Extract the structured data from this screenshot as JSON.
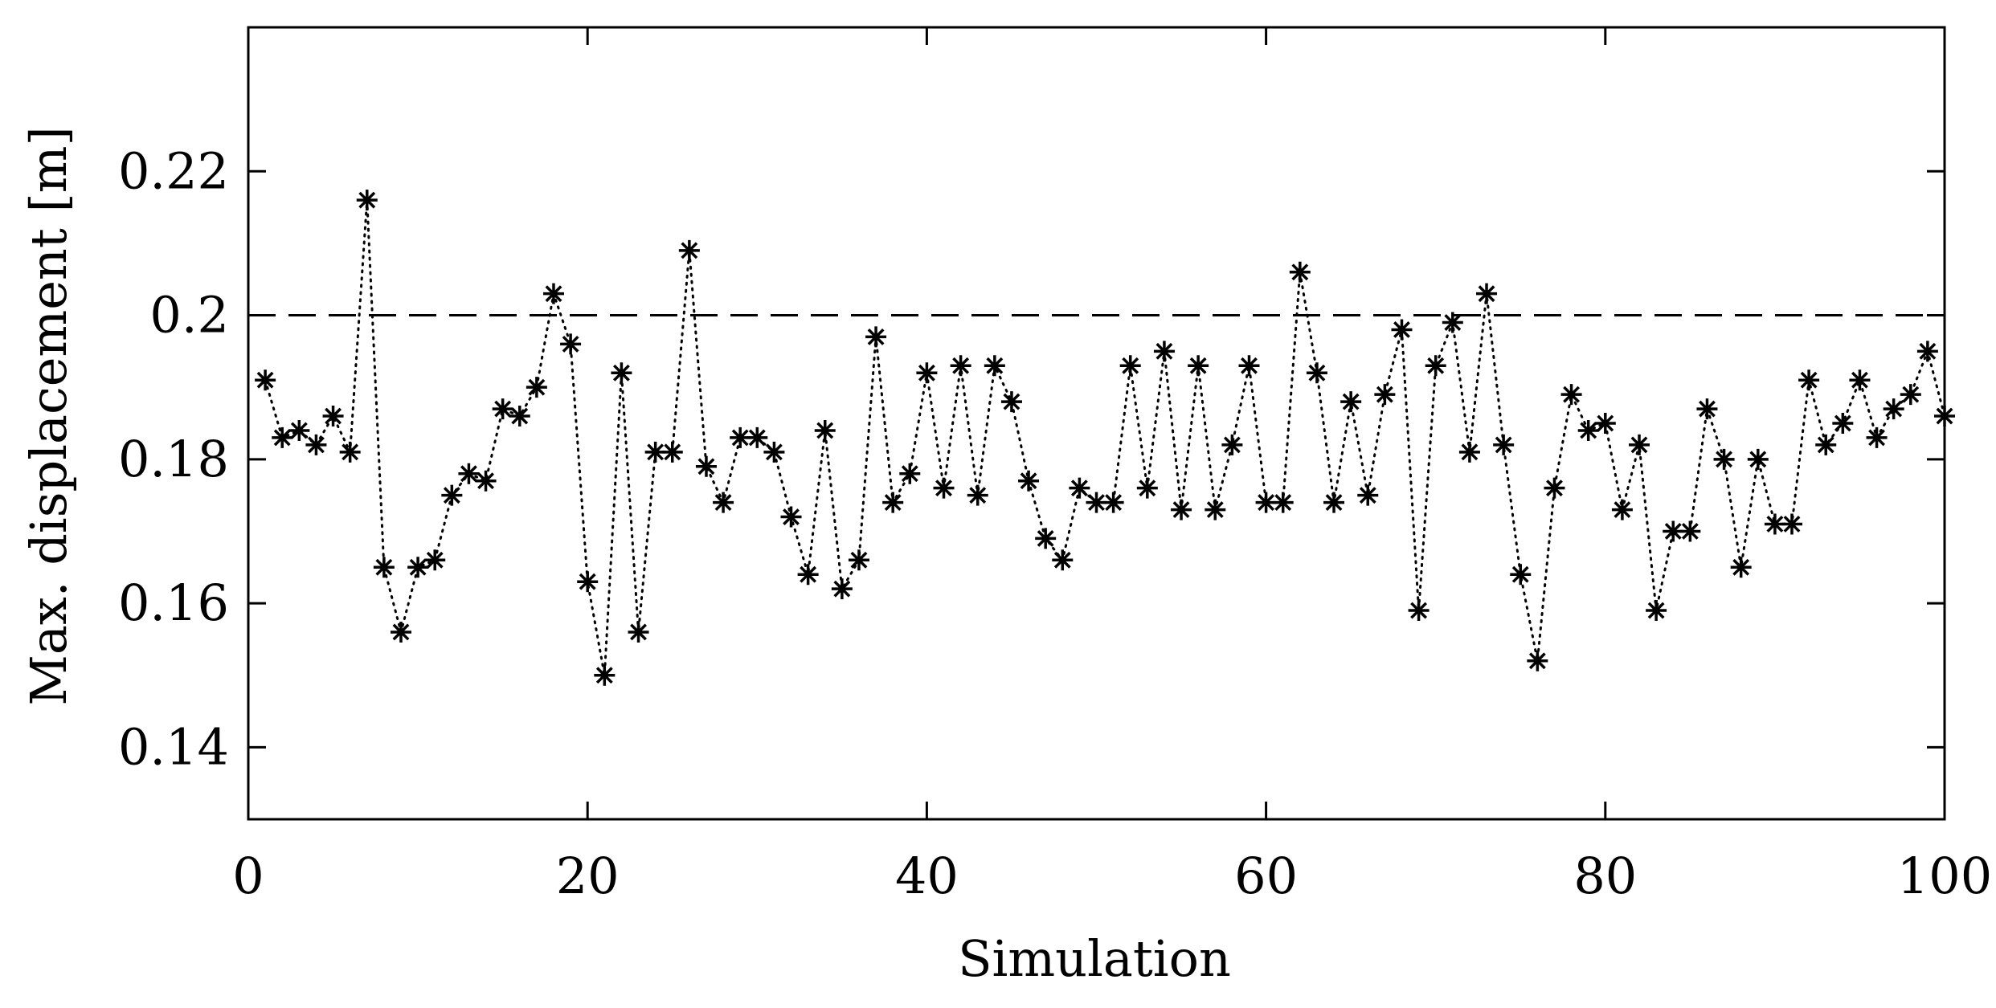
{
  "chart_data": {
    "type": "scatter",
    "xlabel": "Simulation",
    "ylabel": "Max. displacement [m]",
    "xlim": [
      0,
      100
    ],
    "ylim": [
      0.13,
      0.24
    ],
    "xticks": [
      0,
      20,
      40,
      60,
      80,
      100
    ],
    "xtick_labels": [
      "0",
      "20",
      "40",
      "60",
      "80",
      "100"
    ],
    "yticks": [
      0.14,
      0.16,
      0.18,
      0.2,
      0.22
    ],
    "ytick_labels": [
      "0.14",
      "0.16",
      "0.18",
      "0.2",
      "0.22"
    ],
    "grid": false,
    "marker": "asterisk",
    "line_style": "dotted",
    "reference_line": {
      "y": 0.2,
      "style": "dashed"
    },
    "series": [
      {
        "x": [
          1,
          2,
          3,
          4,
          5,
          6,
          7,
          8,
          9,
          10,
          11,
          12,
          13,
          14,
          15,
          16,
          17,
          18,
          19,
          20,
          21,
          22,
          23,
          24,
          25,
          26,
          27,
          28,
          29,
          30,
          31,
          32,
          33,
          34,
          35,
          36,
          37,
          38,
          39,
          40,
          41,
          42,
          43,
          44,
          45,
          46,
          47,
          48,
          49,
          50,
          51,
          52,
          53,
          54,
          55,
          56,
          57,
          58,
          59,
          60,
          61,
          62,
          63,
          64,
          65,
          66,
          67,
          68,
          69,
          70,
          71,
          72,
          73,
          74,
          75,
          76,
          77,
          78,
          79,
          80,
          81,
          82,
          83,
          84,
          85,
          86,
          87,
          88,
          89,
          90,
          91,
          92,
          93,
          94,
          95,
          96,
          97,
          98,
          99,
          100
        ],
        "y": [
          0.191,
          0.183,
          0.184,
          0.182,
          0.186,
          0.181,
          0.216,
          0.165,
          0.156,
          0.165,
          0.166,
          0.175,
          0.178,
          0.177,
          0.187,
          0.186,
          0.19,
          0.203,
          0.196,
          0.163,
          0.15,
          0.192,
          0.156,
          0.181,
          0.181,
          0.209,
          0.179,
          0.174,
          0.183,
          0.183,
          0.181,
          0.172,
          0.164,
          0.184,
          0.162,
          0.166,
          0.197,
          0.174,
          0.178,
          0.192,
          0.176,
          0.193,
          0.175,
          0.193,
          0.188,
          0.177,
          0.169,
          0.166,
          0.176,
          0.174,
          0.174,
          0.193,
          0.176,
          0.195,
          0.173,
          0.193,
          0.173,
          0.182,
          0.193,
          0.174,
          0.174,
          0.206,
          0.192,
          0.174,
          0.188,
          0.175,
          0.189,
          0.198,
          0.159,
          0.193,
          0.199,
          0.181,
          0.203,
          0.182,
          0.164,
          0.152,
          0.176,
          0.189,
          0.184,
          0.185,
          0.173,
          0.182,
          0.159,
          0.17,
          0.17,
          0.187,
          0.18,
          0.165,
          0.18,
          0.171,
          0.171,
          0.191,
          0.182,
          0.185,
          0.191,
          0.183,
          0.187,
          0.189,
          0.195,
          0.186
        ]
      }
    ]
  }
}
